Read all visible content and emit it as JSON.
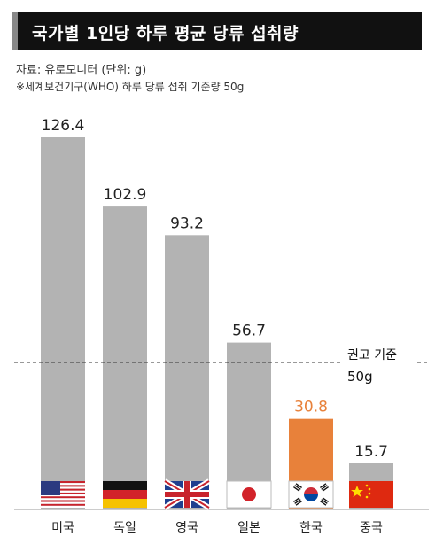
{
  "header": {
    "title": "국가별 1인당 하루 평균 당류 섭취량",
    "source": "자료: 유로모니터 (단위: g)",
    "note": "※세계보건기구(WHO) 하루 당류 섭취 기준량 50g"
  },
  "chart_data": {
    "type": "bar",
    "categories": [
      "미국",
      "독일",
      "영국",
      "일본",
      "한국",
      "중국"
    ],
    "values": [
      126.4,
      102.9,
      93.2,
      56.7,
      30.8,
      15.7
    ],
    "value_labels": [
      "126.4",
      "102.9",
      "93.2",
      "56.7",
      "30.8",
      "15.7"
    ],
    "bar_colors": [
      "#b3b3b3",
      "#b3b3b3",
      "#b3b3b3",
      "#b3b3b3",
      "#e8813a",
      "#b3b3b3"
    ],
    "label_colors": [
      "#222222",
      "#222222",
      "#222222",
      "#222222",
      "#e8813a",
      "#222222"
    ],
    "flags": [
      "us-flag",
      "germany-flag",
      "uk-flag",
      "japan-flag",
      "korea-flag",
      "china-flag"
    ],
    "reference_line": {
      "value": 50,
      "label_line1": "권고 기준",
      "label_line2": "50g"
    },
    "ylim": [
      0,
      126.4
    ],
    "grid": false,
    "legend": "none"
  }
}
